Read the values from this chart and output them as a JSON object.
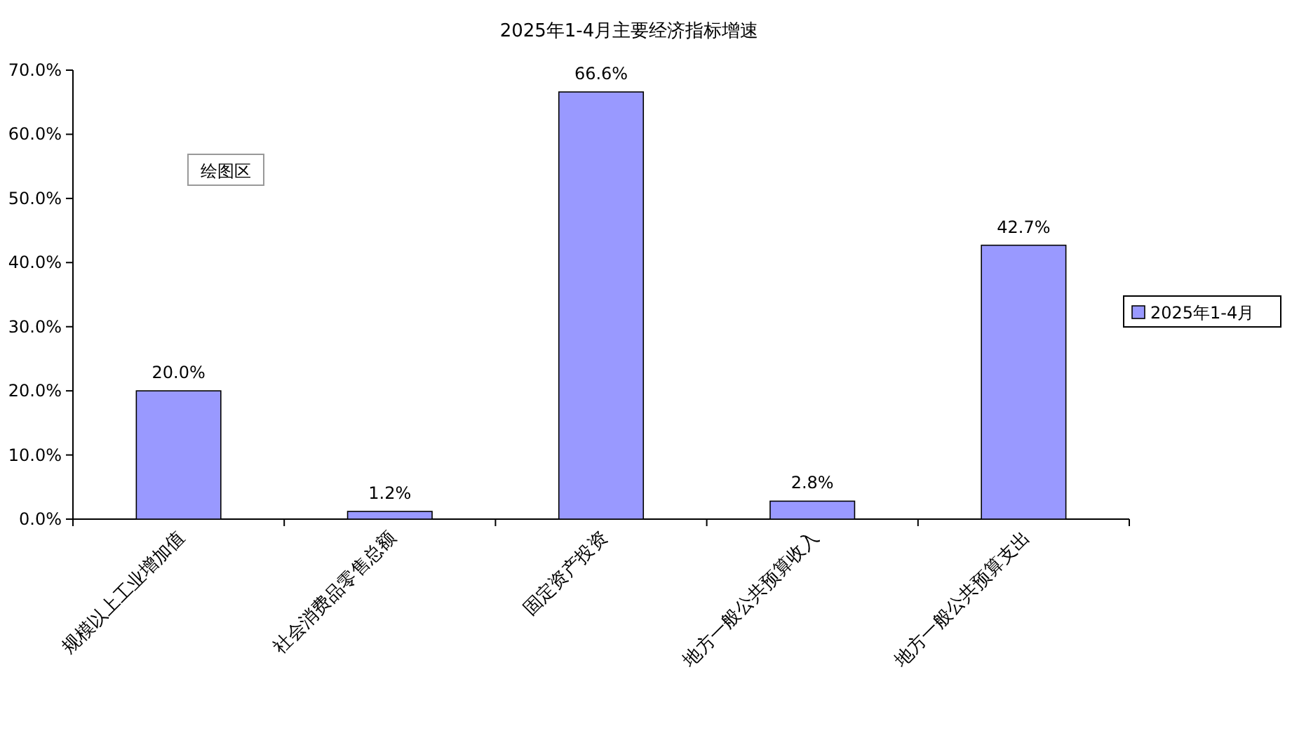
{
  "chart_data": {
    "type": "bar",
    "title": "2025年1-4月主要经济指标增速",
    "categories": [
      "规模以上工业增加值",
      "社会消费品零售总额",
      "固定资产投资",
      "地方一般公共预算收入",
      "地方一般公共预算支出"
    ],
    "series": [
      {
        "name": "2025年1-4月",
        "color": "#9999ff",
        "values": [
          20.0,
          1.2,
          66.6,
          2.8,
          42.7
        ]
      }
    ],
    "value_labels": [
      "20.0%",
      "1.2%",
      "66.6%",
      "2.8%",
      "42.7%"
    ],
    "ylim": [
      0,
      70
    ],
    "yticks": [
      {
        "value": 0,
        "label": "0.0%"
      },
      {
        "value": 10,
        "label": "10.0%"
      },
      {
        "value": 20,
        "label": "20.0%"
      },
      {
        "value": 30,
        "label": "30.0%"
      },
      {
        "value": 40,
        "label": "40.0%"
      },
      {
        "value": 50,
        "label": "50.0%"
      },
      {
        "value": 60,
        "label": "60.0%"
      },
      {
        "value": 70,
        "label": "70.0%"
      }
    ],
    "annotations": [
      "绘图区"
    ],
    "legend": "right",
    "grid": false
  }
}
